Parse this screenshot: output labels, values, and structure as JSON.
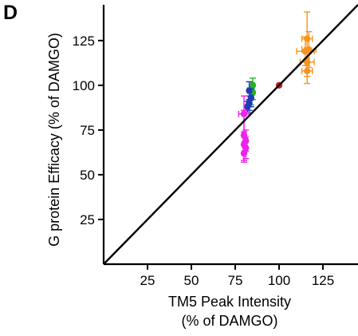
{
  "panel_label": "D",
  "chart_data": {
    "type": "scatter",
    "title": "",
    "xlabel_lines": [
      "TM5 Peak Intensity",
      "(% of DAMGO)"
    ],
    "ylabel": "G protein Efficacy (% of DAMGO)",
    "xlim": [
      0,
      145
    ],
    "ylim": [
      0,
      145
    ],
    "xticks": [
      25,
      50,
      75,
      100,
      125
    ],
    "yticks": [
      25,
      50,
      75,
      100,
      125
    ],
    "grid": false,
    "identity_line": true,
    "line_color": "#000000",
    "series": [
      {
        "color": "#f7941d",
        "points": [
          {
            "x": 116,
            "y": 126,
            "xerr": 3,
            "yerr": 15
          },
          {
            "x": 117,
            "y": 120,
            "xerr": 4,
            "yerr": 10
          },
          {
            "x": 115,
            "y": 119,
            "xerr": 5,
            "yerr": 8
          },
          {
            "x": 116,
            "y": 113,
            "xerr": 4,
            "yerr": 8
          },
          {
            "x": 116,
            "y": 108,
            "xerr": 3,
            "yerr": 7
          }
        ]
      },
      {
        "color": "#cc1f1f",
        "points": [
          {
            "x": 100,
            "y": 100,
            "xerr": 0,
            "yerr": 0
          }
        ]
      },
      {
        "color": "#27b327",
        "points": [
          {
            "x": 85,
            "y": 100,
            "xerr": 1,
            "yerr": 4
          },
          {
            "x": 85,
            "y": 96,
            "xerr": 1,
            "yerr": 4
          },
          {
            "x": 84,
            "y": 93,
            "xerr": 1,
            "yerr": 4
          }
        ]
      },
      {
        "color": "#1f3db3",
        "points": [
          {
            "x": 83,
            "y": 97,
            "xerr": 1,
            "yerr": 5
          },
          {
            "x": 84,
            "y": 93,
            "xerr": 1,
            "yerr": 5
          },
          {
            "x": 83,
            "y": 90,
            "xerr": 1,
            "yerr": 4
          },
          {
            "x": 82,
            "y": 88,
            "xerr": 1,
            "yerr": 3
          }
        ]
      },
      {
        "color": "#ee22ee",
        "points": [
          {
            "x": 80,
            "y": 84,
            "xerr": 3,
            "yerr": 10
          },
          {
            "x": 80,
            "y": 72,
            "xerr": 1,
            "yerr": 14
          },
          {
            "x": 81,
            "y": 69,
            "xerr": 1,
            "yerr": 6
          },
          {
            "x": 80,
            "y": 67,
            "xerr": 1,
            "yerr": 5
          },
          {
            "x": 81,
            "y": 65,
            "xerr": 1,
            "yerr": 6
          },
          {
            "x": 80,
            "y": 62,
            "xerr": 1,
            "yerr": 5
          }
        ]
      }
    ]
  }
}
